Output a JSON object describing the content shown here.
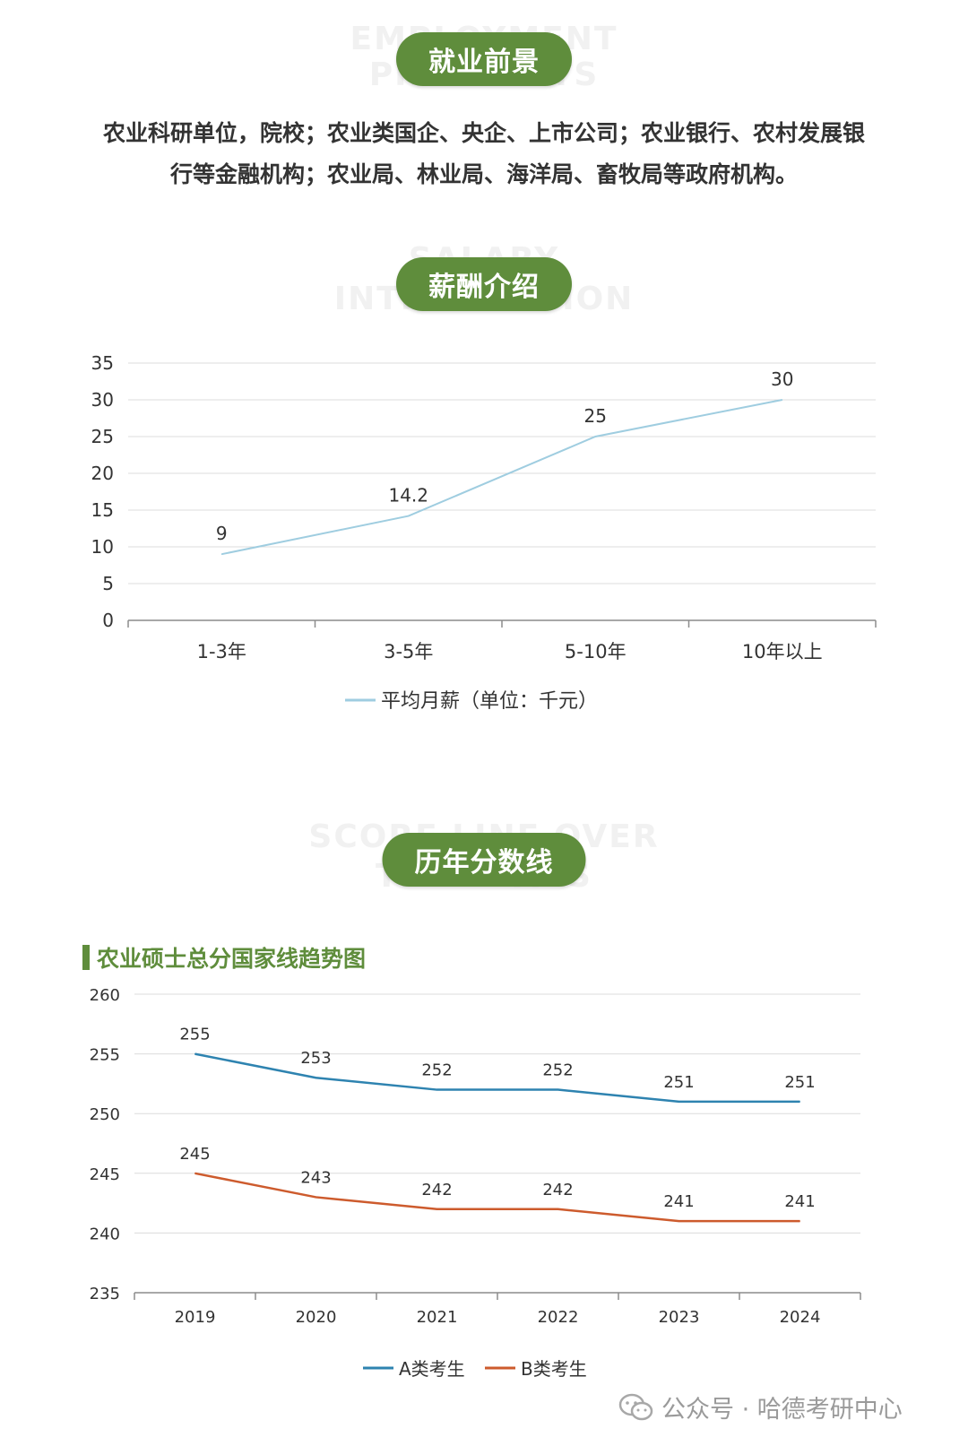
{
  "sections": {
    "employment": {
      "title": "就业前景",
      "watermark": [
        "EMPLOYMENT",
        "PROSPECTS"
      ],
      "text_line1": "农业科研单位，院校；农业类国企、央企、上市公司；农业银行、农村发展银",
      "text_line2": "行等金融机构；农业局、林业局、海洋局、畜牧局等政府机构。"
    },
    "salary": {
      "title": "薪酬介绍",
      "watermark": [
        "SALARY",
        "INTRODUCTION"
      ]
    },
    "scores": {
      "title": "历年分数线",
      "watermark": [
        "SCORE LINE OVER",
        "THE YEARS"
      ],
      "subtitle": "农业硕士总分国家线趋势图"
    }
  },
  "chart_data": [
    {
      "type": "line",
      "categories": [
        "1-3年",
        "3-5年",
        "5-10年",
        "10年以上"
      ],
      "series": [
        {
          "name": "平均月薪（单位：千元）",
          "values": [
            9,
            14.2,
            25,
            30
          ],
          "color": "#9fcde0"
        }
      ],
      "ylim": [
        0,
        35
      ],
      "yticks": [
        0,
        5,
        10,
        15,
        20,
        25,
        30,
        35
      ],
      "grid": true,
      "legend": "bottom"
    },
    {
      "type": "line",
      "categories": [
        "2019",
        "2020",
        "2021",
        "2022",
        "2023",
        "2024"
      ],
      "series": [
        {
          "name": "A类考生",
          "values": [
            255,
            253,
            252,
            252,
            251,
            251
          ],
          "color": "#2e83b0"
        },
        {
          "name": "B类考生",
          "values": [
            245,
            243,
            242,
            242,
            241,
            241
          ],
          "color": "#cd5b2d"
        }
      ],
      "ylim": [
        235,
        260
      ],
      "yticks": [
        235,
        240,
        245,
        250,
        255,
        260
      ],
      "grid": true,
      "legend": "bottom"
    }
  ],
  "footer": {
    "text": "公众号 · 哈德考研中心"
  }
}
